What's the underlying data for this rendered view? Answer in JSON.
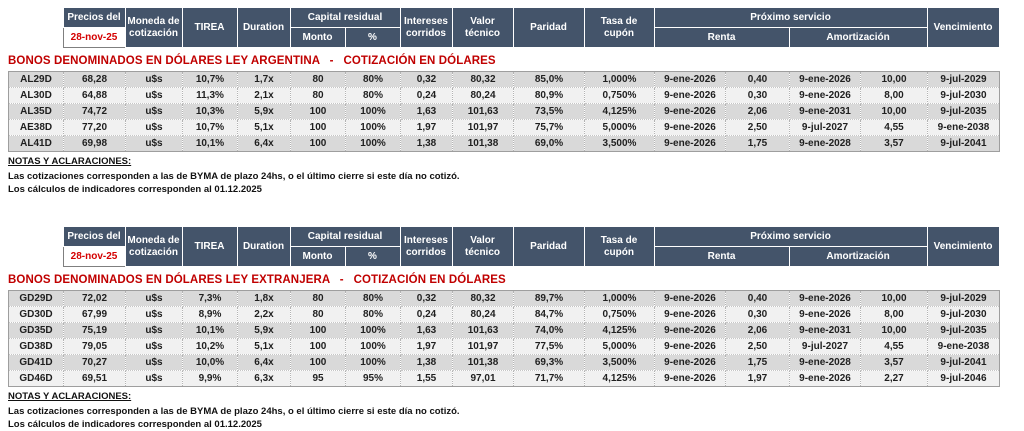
{
  "colors": {
    "header_bg": "#44546A",
    "title_red": "#C00000",
    "date_red": "#D40000",
    "row_gray": "#D9D9D9",
    "row_light": "#F1F1F1"
  },
  "header": {
    "precios_del": "Precios del",
    "date": "28-nov-25",
    "moneda": "Moneda de cotización",
    "tirea": "TIREA",
    "duration": "Duration",
    "capital_residual": "Capital residual",
    "monto": "Monto",
    "pct": "%",
    "intereses": "Intereses corridos",
    "valor_tecnico": "Valor técnico",
    "paridad": "Paridad",
    "tasa_cupon": "Tasa de cupón",
    "proximo_servicio": "Próximo servicio",
    "renta": "Renta",
    "amortizacion": "Amortización",
    "vencimiento": "Vencimiento"
  },
  "sections": [
    {
      "id": "ley-argentina",
      "title": "BONOS DENOMINADOS EN DÓLARES LEY ARGENTINA   -   COTIZACIÓN EN DÓLARES",
      "rows": [
        [
          "AL29D",
          "68,28",
          "u$s",
          "10,7%",
          "1,7x",
          "80",
          "80%",
          "0,32",
          "80,32",
          "85,0%",
          "1,000%",
          "9-ene-2026",
          "0,40",
          "9-ene-2026",
          "10,00",
          "9-jul-2029"
        ],
        [
          "AL30D",
          "64,88",
          "u$s",
          "11,3%",
          "2,1x",
          "80",
          "80%",
          "0,24",
          "80,24",
          "80,9%",
          "0,750%",
          "9-ene-2026",
          "0,30",
          "9-ene-2026",
          "8,00",
          "9-jul-2030"
        ],
        [
          "AL35D",
          "74,72",
          "u$s",
          "10,3%",
          "5,9x",
          "100",
          "100%",
          "1,63",
          "101,63",
          "73,5%",
          "4,125%",
          "9-ene-2026",
          "2,06",
          "9-ene-2031",
          "10,00",
          "9-jul-2035"
        ],
        [
          "AE38D",
          "77,20",
          "u$s",
          "10,7%",
          "5,1x",
          "100",
          "100%",
          "1,97",
          "101,97",
          "75,7%",
          "5,000%",
          "9-ene-2026",
          "2,50",
          "9-jul-2027",
          "4,55",
          "9-ene-2038"
        ],
        [
          "AL41D",
          "69,98",
          "u$s",
          "10,1%",
          "6,4x",
          "100",
          "100%",
          "1,38",
          "101,38",
          "69,0%",
          "3,500%",
          "9-ene-2026",
          "1,75",
          "9-ene-2028",
          "3,57",
          "9-jul-2041"
        ]
      ],
      "notes": {
        "heading": "NOTAS Y ACLARACIONES:",
        "lines": [
          "Las cotizaciones corresponden a las de BYMA de plazo 24hs, o el último cierre si este día no cotizó.",
          "Los cálculos de indicadores corresponden al 01.12.2025"
        ]
      }
    },
    {
      "id": "ley-extranjera",
      "title": "BONOS DENOMINADOS EN DÓLARES LEY EXTRANJERA   -   COTIZACIÓN EN DÓLARES",
      "rows": [
        [
          "GD29D",
          "72,02",
          "u$s",
          "7,3%",
          "1,8x",
          "80",
          "80%",
          "0,32",
          "80,32",
          "89,7%",
          "1,000%",
          "9-ene-2026",
          "0,40",
          "9-ene-2026",
          "10,00",
          "9-jul-2029"
        ],
        [
          "GD30D",
          "67,99",
          "u$s",
          "8,9%",
          "2,2x",
          "80",
          "80%",
          "0,24",
          "80,24",
          "84,7%",
          "0,750%",
          "9-ene-2026",
          "0,30",
          "9-ene-2026",
          "8,00",
          "9-jul-2030"
        ],
        [
          "GD35D",
          "75,19",
          "u$s",
          "10,1%",
          "5,9x",
          "100",
          "100%",
          "1,63",
          "101,63",
          "74,0%",
          "4,125%",
          "9-ene-2026",
          "2,06",
          "9-ene-2031",
          "10,00",
          "9-jul-2035"
        ],
        [
          "GD38D",
          "79,05",
          "u$s",
          "10,2%",
          "5,1x",
          "100",
          "100%",
          "1,97",
          "101,97",
          "77,5%",
          "5,000%",
          "9-ene-2026",
          "2,50",
          "9-jul-2027",
          "4,55",
          "9-ene-2038"
        ],
        [
          "GD41D",
          "70,27",
          "u$s",
          "10,0%",
          "6,4x",
          "100",
          "100%",
          "1,38",
          "101,38",
          "69,3%",
          "3,500%",
          "9-ene-2026",
          "1,75",
          "9-ene-2028",
          "3,57",
          "9-jul-2041"
        ],
        [
          "GD46D",
          "69,51",
          "u$s",
          "9,9%",
          "6,3x",
          "95",
          "95%",
          "1,55",
          "97,01",
          "71,7%",
          "4,125%",
          "9-ene-2026",
          "1,97",
          "9-ene-2026",
          "2,27",
          "9-jul-2046"
        ]
      ],
      "notes": {
        "heading": "NOTAS Y ACLARACIONES:",
        "lines": [
          "Las cotizaciones corresponden a las de BYMA de plazo 24hs, o el último cierre si este día no cotizó.",
          "Los cálculos de indicadores corresponden al 01.12.2025"
        ]
      }
    }
  ]
}
